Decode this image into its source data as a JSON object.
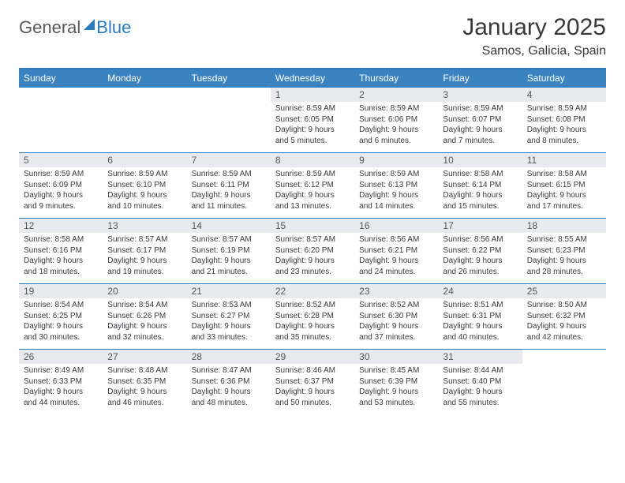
{
  "logo": {
    "part1": "General",
    "part2": "Blue"
  },
  "title": "January 2025",
  "subtitle": "Samos, Galicia, Spain",
  "colors": {
    "header_bg": "#3b83c0",
    "header_text": "#ffffff",
    "rule": "#2b7bbf",
    "daynum_bg": "#e8eaed",
    "body_text": "#3a3a3c",
    "logo_gray": "#58595b",
    "logo_blue": "#2b7bbf"
  },
  "day_headers": [
    "Sunday",
    "Monday",
    "Tuesday",
    "Wednesday",
    "Thursday",
    "Friday",
    "Saturday"
  ],
  "weeks": [
    [
      {
        "n": "",
        "sr": "",
        "ss": "",
        "dl": ""
      },
      {
        "n": "",
        "sr": "",
        "ss": "",
        "dl": ""
      },
      {
        "n": "",
        "sr": "",
        "ss": "",
        "dl": ""
      },
      {
        "n": "1",
        "sr": "8:59 AM",
        "ss": "6:05 PM",
        "dl": "9 hours and 5 minutes."
      },
      {
        "n": "2",
        "sr": "8:59 AM",
        "ss": "6:06 PM",
        "dl": "9 hours and 6 minutes."
      },
      {
        "n": "3",
        "sr": "8:59 AM",
        "ss": "6:07 PM",
        "dl": "9 hours and 7 minutes."
      },
      {
        "n": "4",
        "sr": "8:59 AM",
        "ss": "6:08 PM",
        "dl": "9 hours and 8 minutes."
      }
    ],
    [
      {
        "n": "5",
        "sr": "8:59 AM",
        "ss": "6:09 PM",
        "dl": "9 hours and 9 minutes."
      },
      {
        "n": "6",
        "sr": "8:59 AM",
        "ss": "6:10 PM",
        "dl": "9 hours and 10 minutes."
      },
      {
        "n": "7",
        "sr": "8:59 AM",
        "ss": "6:11 PM",
        "dl": "9 hours and 11 minutes."
      },
      {
        "n": "8",
        "sr": "8:59 AM",
        "ss": "6:12 PM",
        "dl": "9 hours and 13 minutes."
      },
      {
        "n": "9",
        "sr": "8:59 AM",
        "ss": "6:13 PM",
        "dl": "9 hours and 14 minutes."
      },
      {
        "n": "10",
        "sr": "8:58 AM",
        "ss": "6:14 PM",
        "dl": "9 hours and 15 minutes."
      },
      {
        "n": "11",
        "sr": "8:58 AM",
        "ss": "6:15 PM",
        "dl": "9 hours and 17 minutes."
      }
    ],
    [
      {
        "n": "12",
        "sr": "8:58 AM",
        "ss": "6:16 PM",
        "dl": "9 hours and 18 minutes."
      },
      {
        "n": "13",
        "sr": "8:57 AM",
        "ss": "6:17 PM",
        "dl": "9 hours and 19 minutes."
      },
      {
        "n": "14",
        "sr": "8:57 AM",
        "ss": "6:19 PM",
        "dl": "9 hours and 21 minutes."
      },
      {
        "n": "15",
        "sr": "8:57 AM",
        "ss": "6:20 PM",
        "dl": "9 hours and 23 minutes."
      },
      {
        "n": "16",
        "sr": "8:56 AM",
        "ss": "6:21 PM",
        "dl": "9 hours and 24 minutes."
      },
      {
        "n": "17",
        "sr": "8:56 AM",
        "ss": "6:22 PM",
        "dl": "9 hours and 26 minutes."
      },
      {
        "n": "18",
        "sr": "8:55 AM",
        "ss": "6:23 PM",
        "dl": "9 hours and 28 minutes."
      }
    ],
    [
      {
        "n": "19",
        "sr": "8:54 AM",
        "ss": "6:25 PM",
        "dl": "9 hours and 30 minutes."
      },
      {
        "n": "20",
        "sr": "8:54 AM",
        "ss": "6:26 PM",
        "dl": "9 hours and 32 minutes."
      },
      {
        "n": "21",
        "sr": "8:53 AM",
        "ss": "6:27 PM",
        "dl": "9 hours and 33 minutes."
      },
      {
        "n": "22",
        "sr": "8:52 AM",
        "ss": "6:28 PM",
        "dl": "9 hours and 35 minutes."
      },
      {
        "n": "23",
        "sr": "8:52 AM",
        "ss": "6:30 PM",
        "dl": "9 hours and 37 minutes."
      },
      {
        "n": "24",
        "sr": "8:51 AM",
        "ss": "6:31 PM",
        "dl": "9 hours and 40 minutes."
      },
      {
        "n": "25",
        "sr": "8:50 AM",
        "ss": "6:32 PM",
        "dl": "9 hours and 42 minutes."
      }
    ],
    [
      {
        "n": "26",
        "sr": "8:49 AM",
        "ss": "6:33 PM",
        "dl": "9 hours and 44 minutes."
      },
      {
        "n": "27",
        "sr": "8:48 AM",
        "ss": "6:35 PM",
        "dl": "9 hours and 46 minutes."
      },
      {
        "n": "28",
        "sr": "8:47 AM",
        "ss": "6:36 PM",
        "dl": "9 hours and 48 minutes."
      },
      {
        "n": "29",
        "sr": "8:46 AM",
        "ss": "6:37 PM",
        "dl": "9 hours and 50 minutes."
      },
      {
        "n": "30",
        "sr": "8:45 AM",
        "ss": "6:39 PM",
        "dl": "9 hours and 53 minutes."
      },
      {
        "n": "31",
        "sr": "8:44 AM",
        "ss": "6:40 PM",
        "dl": "9 hours and 55 minutes."
      },
      {
        "n": "",
        "sr": "",
        "ss": "",
        "dl": ""
      }
    ]
  ],
  "labels": {
    "sunrise": "Sunrise:",
    "sunset": "Sunset:",
    "daylight": "Daylight:"
  }
}
